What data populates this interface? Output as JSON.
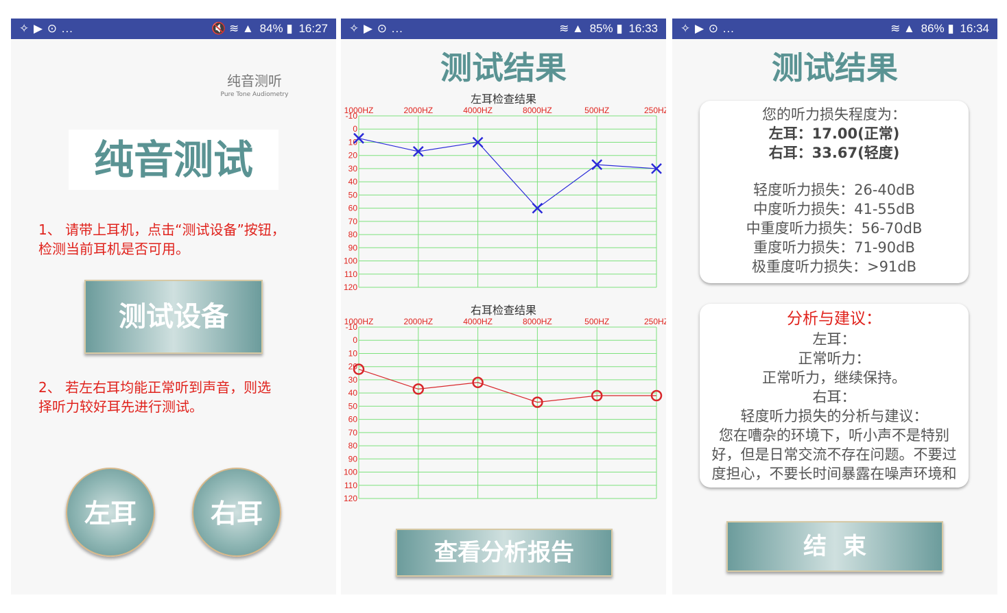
{
  "phones": [
    {
      "status": {
        "left": "✧ ▶ ⊙ ...",
        "right_icons": "🔇 ≋ ▲",
        "battery": "84%",
        "time": "16:27"
      },
      "logo": {
        "cn": "纯音测听",
        "en": "Pure Tone Audiometry"
      },
      "title": "纯音测试",
      "instruction1": [
        "1、 请带上耳机，点击“测试设备”按钮，",
        "检测当前耳机是否可用。"
      ],
      "test_button": "测试设备",
      "instruction2": [
        "2、 若左右耳均能正常听到声音，则选",
        "择听力较好耳先进行测试。"
      ],
      "left_button": "左耳",
      "right_button": "右耳"
    },
    {
      "status": {
        "left": "✧ ▶ ⊙ ...",
        "right_icons": "≋ ▲",
        "battery": "85%",
        "time": "16:33"
      },
      "title": "测试结果",
      "report_button": "查看分析报告"
    },
    {
      "status": {
        "left": "✧ ▶ ⊙ ...",
        "right_icons": "≋ ▲",
        "battery": "86%",
        "time": "16:34"
      },
      "title": "测试结果",
      "summary": {
        "heading": "您的听力损失程度为：",
        "left": "左耳：17.00(正常)",
        "right": "右耳：33.67(轻度)",
        "levels": [
          "轻度听力损失：26-40dB",
          "中度听力损失：41-55dB",
          "中重度听力损失：56-70dB",
          "重度听力损失：71-90dB",
          "极重度听力损失：>91dB"
        ]
      },
      "analysis": {
        "heading": "分析与建议：",
        "lines": [
          "左耳：",
          "正常听力：",
          "正常听力，继续保持。",
          "右耳：",
          "轻度听力损失的分析与建议：",
          "您在嘈杂的环境下，听小声不是特别",
          "好，但是日常交流不存在问题。不要过",
          "度担心，不要长时间暴露在噪声环境和"
        ]
      },
      "end_button": "结  束"
    }
  ],
  "colors": {
    "status_bar": "#3a4ba0",
    "grid": "#7de27d",
    "axis_text": "#e0231d",
    "left_series": "#2a2ad8",
    "right_series": "#d8262a",
    "title_teal": "#5a9393"
  },
  "chart_data": [
    {
      "type": "line",
      "title": "左耳检查结果",
      "categories": [
        "1000HZ",
        "2000HZ",
        "4000HZ",
        "8000HZ",
        "500HZ",
        "250HZ"
      ],
      "y_ticks": [
        "-10",
        "0",
        "10",
        "20",
        "30",
        "40",
        "50",
        "60",
        "70",
        "80",
        "90",
        "100",
        "110",
        "120"
      ],
      "ylim": [
        -10,
        120
      ],
      "y_inverted": true,
      "marker": "x",
      "series": [
        {
          "values": [
            7,
            17,
            10,
            60,
            27,
            30
          ]
        }
      ]
    },
    {
      "type": "line",
      "title": "右耳检查结果",
      "categories": [
        "1000HZ",
        "2000HZ",
        "4000HZ",
        "8000HZ",
        "500HZ",
        "250HZ"
      ],
      "y_ticks": [
        "-10",
        "0",
        "10",
        "20",
        "30",
        "40",
        "50",
        "60",
        "70",
        "80",
        "90",
        "100",
        "110",
        "120"
      ],
      "ylim": [
        -10,
        120
      ],
      "y_inverted": true,
      "marker": "o",
      "series": [
        {
          "values": [
            22,
            37,
            32,
            47,
            42,
            42
          ]
        }
      ]
    }
  ]
}
